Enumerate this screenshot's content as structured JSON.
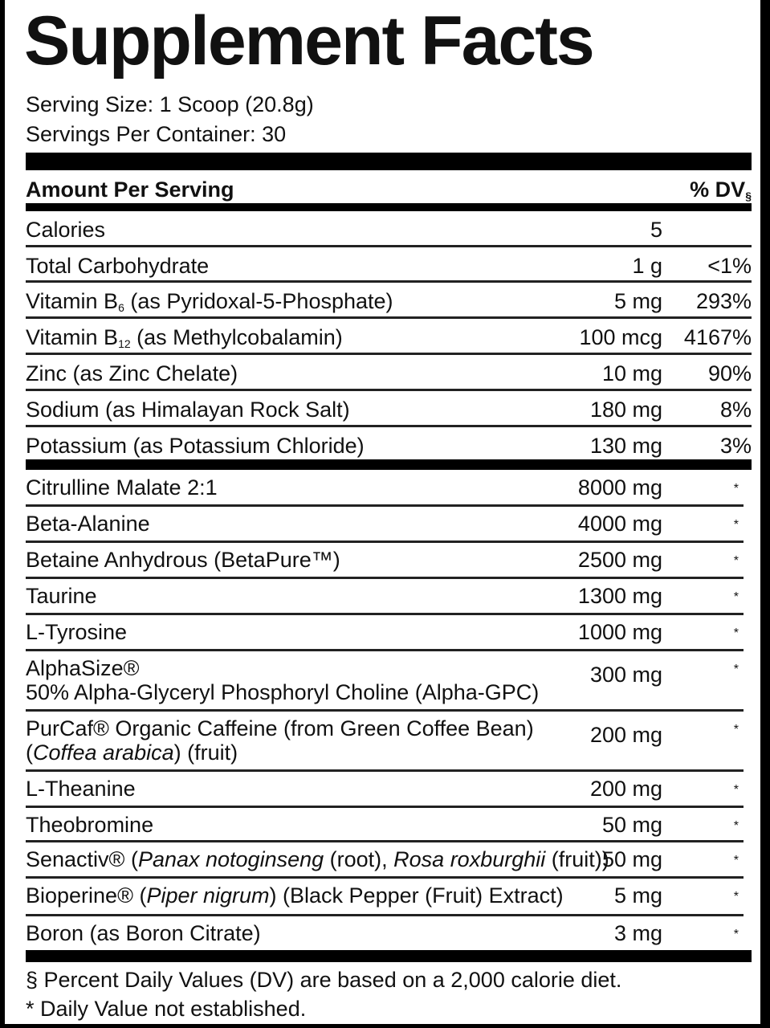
{
  "title": "Supplement Facts",
  "serving_size": "Serving Size: 1 Scoop (20.8g)",
  "servings_per_container": "Servings Per Container: 30",
  "header": {
    "amount_label": "Amount Per Serving",
    "dv_label": "% DV",
    "dv_mark": "§"
  },
  "section1": [
    {
      "name": [
        {
          "t": "Calories"
        }
      ],
      "amount": "5",
      "dv": ""
    },
    {
      "name": [
        {
          "t": "Total Carbohydrate"
        }
      ],
      "amount": "1 g",
      "dv": "<1%"
    },
    {
      "name": [
        {
          "t": "Vitamin B"
        },
        {
          "t": "6",
          "sub": true
        },
        {
          "t": " (as Pyridoxal-5-Phosphate)"
        }
      ],
      "amount": "5 mg",
      "dv": "293%"
    },
    {
      "name": [
        {
          "t": "Vitamin B"
        },
        {
          "t": "12",
          "sub": true
        },
        {
          "t": " (as Methylcobalamin)"
        }
      ],
      "amount": "100 mcg",
      "dv": "4167%"
    },
    {
      "name": [
        {
          "t": "Zinc (as Zinc Chelate)"
        }
      ],
      "amount": "10 mg",
      "dv": "90%"
    },
    {
      "name": [
        {
          "t": "Sodium (as Himalayan Rock Salt)"
        }
      ],
      "amount": "180 mg",
      "dv": "8%"
    },
    {
      "name": [
        {
          "t": "Potassium (as Potassium Chloride)"
        }
      ],
      "amount": "130 mg",
      "dv": "3%"
    }
  ],
  "section2": [
    {
      "name": [
        {
          "t": "Citrulline Malate 2:1"
        }
      ],
      "amount": "8000 mg",
      "dv": "*"
    },
    {
      "name": [
        {
          "t": "Beta-Alanine"
        }
      ],
      "amount": "4000 mg",
      "dv": "*"
    },
    {
      "name": [
        {
          "t": "Betaine Anhydrous (BetaPure™)"
        }
      ],
      "amount": "2500 mg",
      "dv": "*"
    },
    {
      "name": [
        {
          "t": "Taurine"
        }
      ],
      "amount": "1300 mg",
      "dv": "*"
    },
    {
      "name": [
        {
          "t": "L-Tyrosine"
        }
      ],
      "amount": "1000 mg",
      "dv": "*"
    },
    {
      "name": [
        {
          "t": "AlphaSize®"
        },
        {
          "br": true
        },
        {
          "t": "50% Alpha-Glyceryl Phosphoryl Choline (Alpha-GPC)"
        }
      ],
      "amount": "300 mg",
      "dv": "*"
    },
    {
      "name": [
        {
          "t": "PurCaf® Organic Caffeine (from Green Coffee Bean)"
        },
        {
          "br": true
        },
        {
          "t": "("
        },
        {
          "t": "Coffea arabica",
          "i": true
        },
        {
          "t": ") (fruit)"
        }
      ],
      "amount": "200 mg",
      "dv": "*"
    },
    {
      "name": [
        {
          "t": "L-Theanine"
        }
      ],
      "amount": "200 mg",
      "dv": "*"
    },
    {
      "name": [
        {
          "t": "Theobromine"
        }
      ],
      "amount": "50 mg",
      "dv": "*"
    },
    {
      "name": [
        {
          "t": "Senactiv® ("
        },
        {
          "t": "Panax notoginseng",
          "i": true
        },
        {
          "t": " (root), "
        },
        {
          "t": "Rosa roxburghii",
          "i": true
        },
        {
          "t": " (fruit))"
        }
      ],
      "amount": "50 mg",
      "dv": "*"
    },
    {
      "name": [
        {
          "t": "Bioperine® ("
        },
        {
          "t": "Piper nigrum",
          "i": true
        },
        {
          "t": ") (Black Pepper (Fruit) Extract)"
        }
      ],
      "amount": "5 mg",
      "dv": "*"
    },
    {
      "name": [
        {
          "t": "Boron (as Boron Citrate)"
        }
      ],
      "amount": "3 mg",
      "dv": "*"
    }
  ],
  "footnotes": [
    "§ Percent Daily Values (DV) are based on a 2,000 calorie diet.",
    "* Daily Value not established."
  ]
}
